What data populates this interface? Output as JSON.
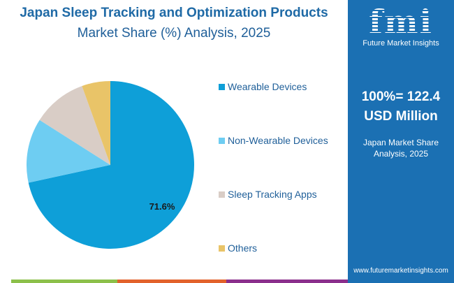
{
  "title_line1": "Japan Sleep Tracking and Optimization Products",
  "title_line2": "Market Share (%) Analysis, 2025",
  "chart_data": {
    "type": "pie",
    "title": "Japan Sleep Tracking and Optimization Products Market Share (%) Analysis, 2025",
    "categories": [
      "Wearable Devices",
      "Non-Wearable Devices",
      "Sleep Tracking Apps",
      "Others"
    ],
    "values": [
      71.6,
      12.4,
      10.5,
      5.5
    ],
    "colors": [
      "#0e9fd8",
      "#6ecdf2",
      "#d9cdc6",
      "#e9c468"
    ],
    "data_labels": [
      "71.6%",
      "",
      "",
      ""
    ],
    "legend_position": "right"
  },
  "panel": {
    "logo_text": "fmi",
    "logo_sub": "Future Market Insights",
    "total_line1": "100%= 122.4",
    "total_line2": "USD Million",
    "subtitle_line1": "Japan Market Share",
    "subtitle_line2": "Analysis, 2025",
    "url": "www.futuremarketinsights.com"
  }
}
